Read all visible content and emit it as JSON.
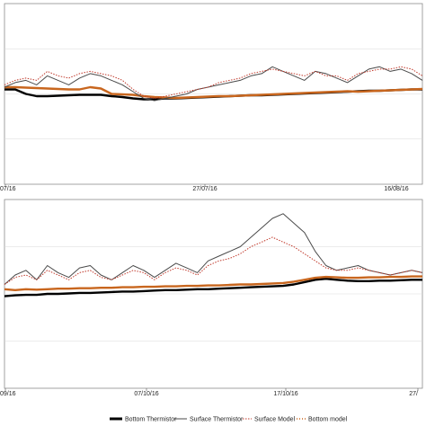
{
  "colors": {
    "bottom_thermistor": "#000000",
    "surface_thermistor": "#4a4a4a",
    "surface_model": "#c0392b",
    "bottom_model": "#c8661e",
    "frame": "#8c8c8c",
    "grid": "#d9d9d9"
  },
  "legend": [
    {
      "key": "bottom_thermistor",
      "label": "Bottom Thermistor",
      "style": "thick-line"
    },
    {
      "key": "surface_thermistor",
      "label": "Surface Thermistor",
      "style": "thin-line"
    },
    {
      "key": "surface_model",
      "label": "Surface Model",
      "style": "dashed"
    },
    {
      "key": "bottom_model",
      "label": "Bottom model",
      "style": "dotted"
    }
  ],
  "chart_data": [
    {
      "type": "line",
      "grid": true,
      "ylim": [
        0,
        4
      ],
      "x_ticks": [
        "07/16",
        "27/07/16",
        "16/08/16"
      ],
      "series": [
        {
          "name": "Surface Thermistor",
          "key": "surface_thermistor",
          "values": [
            2.15,
            2.25,
            2.3,
            2.2,
            2.4,
            2.3,
            2.2,
            2.35,
            2.45,
            2.4,
            2.3,
            2.2,
            2.05,
            1.9,
            1.85,
            1.9,
            1.95,
            2.0,
            2.1,
            2.15,
            2.2,
            2.25,
            2.3,
            2.4,
            2.45,
            2.6,
            2.5,
            2.4,
            2.3,
            2.5,
            2.45,
            2.35,
            2.25,
            2.4,
            2.55,
            2.6,
            2.5,
            2.55,
            2.45,
            2.3
          ]
        },
        {
          "name": "Surface Model",
          "key": "surface_model",
          "values": [
            2.2,
            2.3,
            2.35,
            2.3,
            2.5,
            2.4,
            2.35,
            2.45,
            2.5,
            2.45,
            2.4,
            2.3,
            2.1,
            1.95,
            1.9,
            1.95,
            2.0,
            2.05,
            2.1,
            2.15,
            2.25,
            2.3,
            2.35,
            2.45,
            2.5,
            2.55,
            2.5,
            2.45,
            2.4,
            2.5,
            2.4,
            2.4,
            2.3,
            2.45,
            2.5,
            2.55,
            2.55,
            2.6,
            2.55,
            2.4
          ]
        },
        {
          "name": "Bottom Thermistor",
          "key": "bottom_thermistor",
          "values": [
            2.1,
            2.1,
            2.0,
            1.95,
            1.95,
            1.96,
            1.97,
            1.98,
            1.98,
            1.98,
            1.95,
            1.93,
            1.9,
            1.88,
            1.88,
            1.9,
            1.9,
            1.91,
            1.92,
            1.93,
            1.94,
            1.95,
            1.96,
            1.97,
            1.97,
            1.98,
            1.99,
            2.0,
            2.01,
            2.02,
            2.03,
            2.04,
            2.05,
            2.06,
            2.07,
            2.07,
            2.08,
            2.09,
            2.1,
            2.1
          ]
        },
        {
          "name": "Bottom model",
          "key": "bottom_model",
          "values": [
            2.15,
            2.15,
            2.14,
            2.13,
            2.12,
            2.11,
            2.1,
            2.1,
            2.15,
            2.12,
            2.0,
            1.99,
            1.98,
            1.95,
            1.93,
            1.92,
            1.91,
            1.92,
            1.93,
            1.94,
            1.95,
            1.95,
            1.96,
            1.97,
            1.98,
            1.99,
            2.0,
            2.01,
            2.02,
            2.03,
            2.04,
            2.05,
            2.06,
            2.05,
            2.06,
            2.07,
            2.08,
            2.09,
            2.1,
            2.11
          ]
        }
      ]
    },
    {
      "type": "line",
      "grid": true,
      "ylim": [
        0,
        4
      ],
      "x_ticks": [
        "09/16",
        "07/10/16",
        "17/10/16",
        "27/"
      ],
      "series": [
        {
          "name": "Surface Thermistor",
          "key": "surface_thermistor",
          "values": [
            2.2,
            2.4,
            2.5,
            2.3,
            2.6,
            2.45,
            2.35,
            2.55,
            2.6,
            2.4,
            2.3,
            2.45,
            2.6,
            2.5,
            2.35,
            2.5,
            2.65,
            2.55,
            2.45,
            2.7,
            2.8,
            2.9,
            3.0,
            3.2,
            3.4,
            3.6,
            3.7,
            3.5,
            3.3,
            2.9,
            2.6,
            2.5,
            2.55,
            2.6,
            2.5,
            2.45,
            2.4,
            2.45,
            2.5,
            2.45
          ]
        },
        {
          "name": "Surface Model",
          "key": "surface_model",
          "values": [
            2.2,
            2.35,
            2.4,
            2.3,
            2.5,
            2.4,
            2.3,
            2.45,
            2.5,
            2.35,
            2.3,
            2.4,
            2.5,
            2.45,
            2.3,
            2.45,
            2.55,
            2.5,
            2.4,
            2.6,
            2.7,
            2.75,
            2.85,
            3.0,
            3.1,
            3.2,
            3.1,
            3.0,
            2.85,
            2.7,
            2.55,
            2.5,
            2.5,
            2.55,
            2.5,
            2.45,
            2.4,
            2.45,
            2.5,
            2.45
          ]
        },
        {
          "name": "Bottom Thermistor",
          "key": "bottom_thermistor",
          "values": [
            1.95,
            1.97,
            1.98,
            1.98,
            2.0,
            2.0,
            2.01,
            2.02,
            2.02,
            2.03,
            2.04,
            2.05,
            2.05,
            2.06,
            2.07,
            2.08,
            2.08,
            2.09,
            2.1,
            2.1,
            2.11,
            2.12,
            2.13,
            2.14,
            2.15,
            2.16,
            2.17,
            2.2,
            2.25,
            2.3,
            2.32,
            2.3,
            2.28,
            2.27,
            2.27,
            2.28,
            2.28,
            2.29,
            2.3,
            2.3
          ]
        },
        {
          "name": "Bottom model",
          "key": "bottom_model",
          "values": [
            2.1,
            2.08,
            2.1,
            2.09,
            2.1,
            2.11,
            2.11,
            2.12,
            2.12,
            2.13,
            2.13,
            2.14,
            2.14,
            2.15,
            2.15,
            2.16,
            2.16,
            2.17,
            2.17,
            2.18,
            2.18,
            2.19,
            2.2,
            2.2,
            2.21,
            2.22,
            2.23,
            2.26,
            2.3,
            2.34,
            2.36,
            2.35,
            2.34,
            2.34,
            2.35,
            2.35,
            2.36,
            2.36,
            2.37,
            2.37
          ]
        }
      ]
    }
  ]
}
